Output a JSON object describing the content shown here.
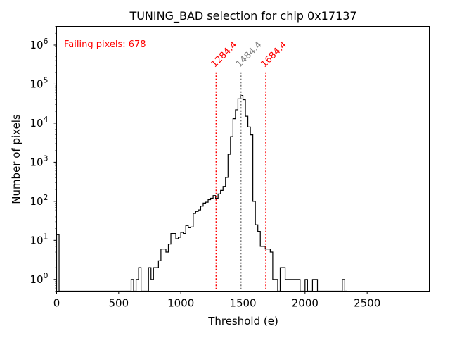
{
  "chart_data": {
    "type": "histogram",
    "title": "TUNING_BAD selection for chip 0x17137",
    "xlabel": "Threshold (e)",
    "ylabel": "Number of pixels",
    "xscale": "linear",
    "yscale": "log",
    "xlim": [
      0,
      3000
    ],
    "ylim": [
      0.5,
      3000000
    ],
    "xticks": [
      0,
      500,
      1000,
      1500,
      2000,
      2500
    ],
    "yticks": [
      1,
      10,
      100,
      1000,
      10000,
      100000,
      1000000
    ],
    "ytick_labels": [
      {
        "base": "10",
        "exp": "0"
      },
      {
        "base": "10",
        "exp": "1"
      },
      {
        "base": "10",
        "exp": "2"
      },
      {
        "base": "10",
        "exp": "3"
      },
      {
        "base": "10",
        "exp": "4"
      },
      {
        "base": "10",
        "exp": "5"
      },
      {
        "base": "10",
        "exp": "6"
      }
    ],
    "bin_width": 20,
    "bins": [
      [
        0,
        14
      ],
      [
        580,
        0
      ],
      [
        600,
        1
      ],
      [
        620,
        0
      ],
      [
        640,
        1
      ],
      [
        660,
        2
      ],
      [
        680,
        0
      ],
      [
        740,
        2
      ],
      [
        760,
        1
      ],
      [
        780,
        2
      ],
      [
        800,
        2
      ],
      [
        820,
        3
      ],
      [
        840,
        6
      ],
      [
        860,
        6
      ],
      [
        880,
        5
      ],
      [
        900,
        8
      ],
      [
        920,
        15
      ],
      [
        940,
        15
      ],
      [
        960,
        11
      ],
      [
        980,
        12
      ],
      [
        1000,
        16
      ],
      [
        1020,
        15
      ],
      [
        1040,
        24
      ],
      [
        1060,
        21
      ],
      [
        1080,
        22
      ],
      [
        1100,
        49
      ],
      [
        1120,
        55
      ],
      [
        1140,
        60
      ],
      [
        1160,
        75
      ],
      [
        1180,
        90
      ],
      [
        1200,
        95
      ],
      [
        1220,
        110
      ],
      [
        1240,
        120
      ],
      [
        1260,
        140
      ],
      [
        1280,
        120
      ],
      [
        1300,
        155
      ],
      [
        1320,
        190
      ],
      [
        1340,
        240
      ],
      [
        1360,
        410
      ],
      [
        1380,
        1600
      ],
      [
        1400,
        4500
      ],
      [
        1420,
        13000
      ],
      [
        1440,
        22000
      ],
      [
        1460,
        42000
      ],
      [
        1480,
        51000
      ],
      [
        1500,
        40000
      ],
      [
        1520,
        15000
      ],
      [
        1540,
        8000
      ],
      [
        1560,
        5000
      ],
      [
        1580,
        100
      ],
      [
        1600,
        25
      ],
      [
        1620,
        17
      ],
      [
        1640,
        7
      ],
      [
        1660,
        7
      ],
      [
        1680,
        6
      ],
      [
        1700,
        6
      ],
      [
        1720,
        5
      ],
      [
        1740,
        1
      ],
      [
        1760,
        1
      ],
      [
        1780,
        0
      ],
      [
        1800,
        2
      ],
      [
        1820,
        2
      ],
      [
        1840,
        1
      ],
      [
        1860,
        1
      ],
      [
        1880,
        1
      ],
      [
        1900,
        1
      ],
      [
        1920,
        1
      ],
      [
        1940,
        1
      ],
      [
        1960,
        0
      ],
      [
        2000,
        1
      ],
      [
        2020,
        0
      ],
      [
        2060,
        1
      ],
      [
        2080,
        1
      ],
      [
        2100,
        0
      ],
      [
        2300,
        1
      ],
      [
        2320,
        0
      ]
    ],
    "reference_lines": [
      {
        "x": 1284.4,
        "label": "1284.4",
        "color": "#ff0000",
        "style": "dotted"
      },
      {
        "x": 1484.4,
        "label": "1484.4",
        "color": "#808080",
        "style": "dotted"
      },
      {
        "x": 1684.4,
        "label": "1684.4",
        "color": "#ff0000",
        "style": "dotted"
      }
    ],
    "annotation": {
      "text": "Failing pixels: 678",
      "color": "#ff0000",
      "position": "top-left"
    },
    "line_color": "#000000"
  }
}
